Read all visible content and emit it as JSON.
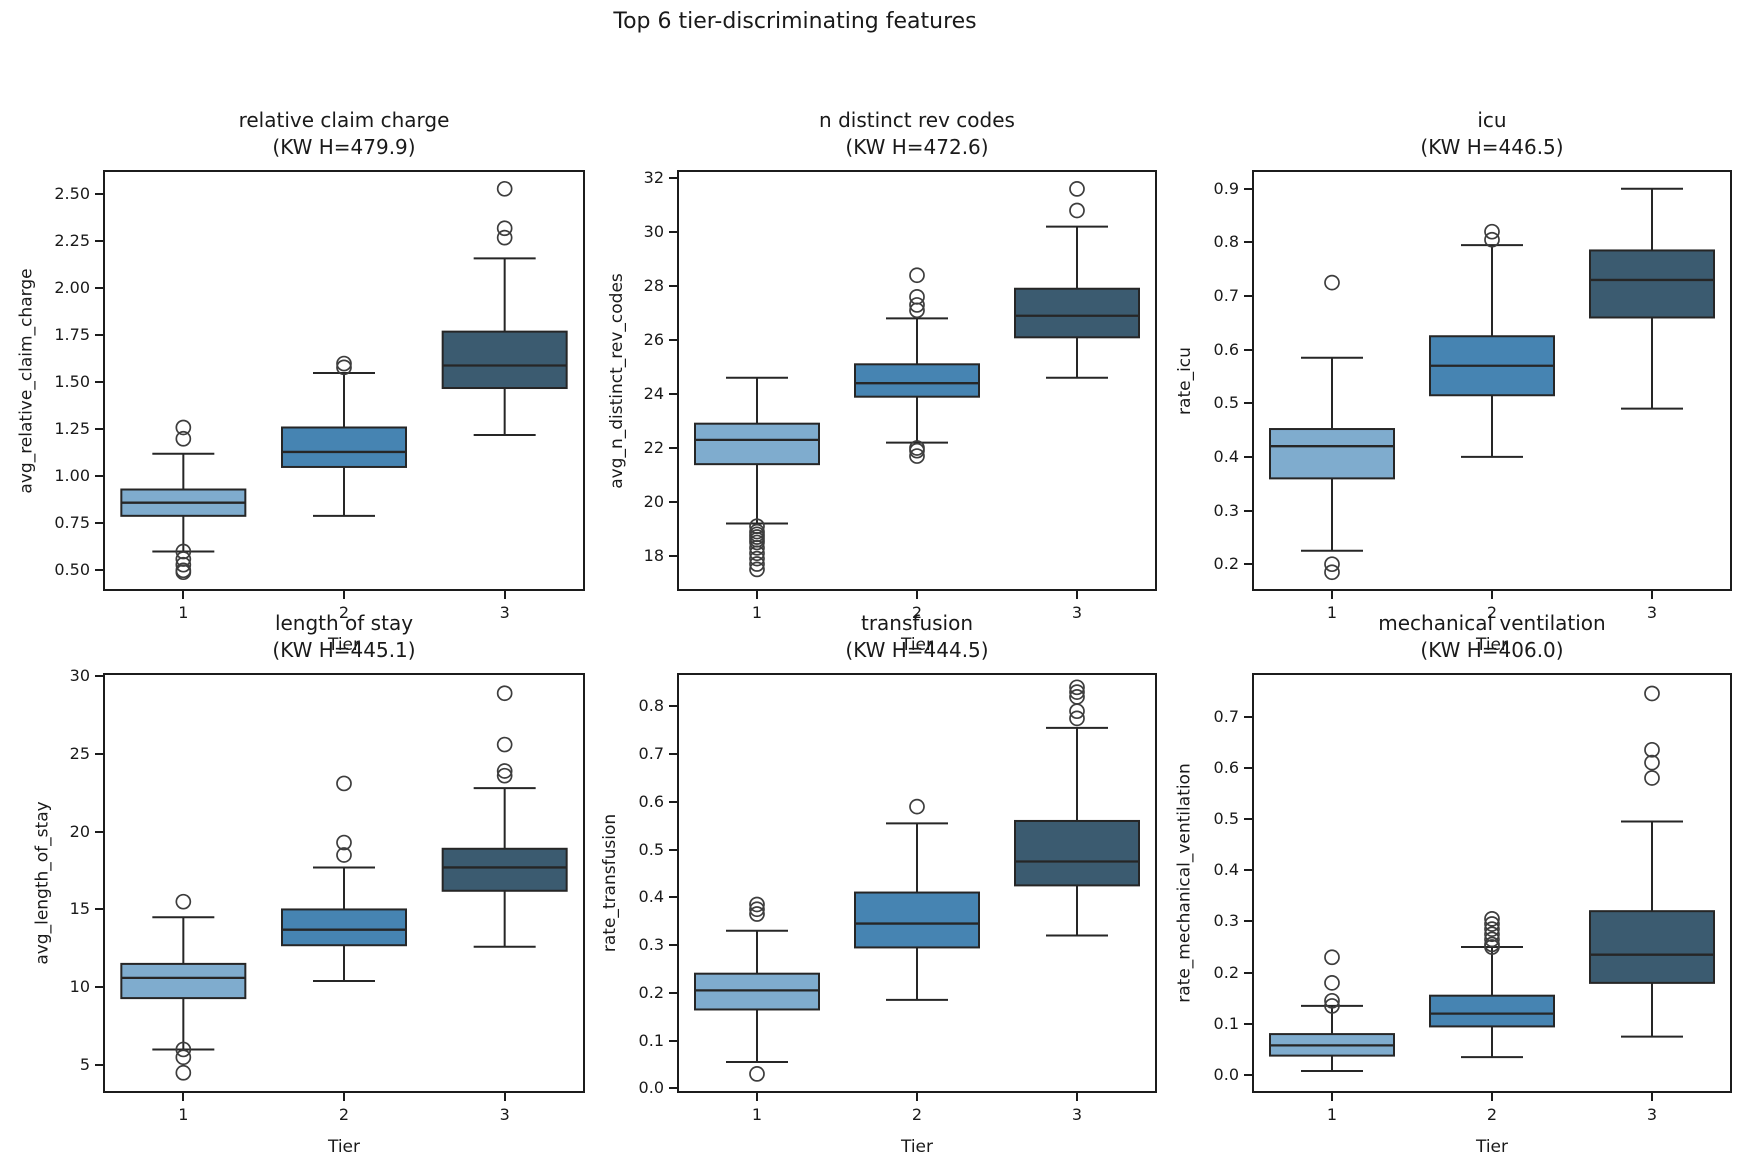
{
  "figure": {
    "suptitle": "Top 6 tier-discriminating features",
    "x_axis_label": "Tier",
    "categories": [
      "1",
      "2",
      "3"
    ]
  },
  "colors": {
    "tier_fills": [
      "#7FACCE",
      "#4684B2",
      "#3B5B70"
    ],
    "box_edge": "#262626",
    "axes_edge": "#1c1c1c",
    "flier_edge": "#3d3d3d",
    "text": "#1a1a1a"
  },
  "chart_data": [
    {
      "type": "box",
      "title": "relative claim charge",
      "subtitle": "(KW H=479.9)",
      "kw_h": 479.9,
      "xlabel": "Tier",
      "ylabel": "avg_relative_claim_charge",
      "categories": [
        "1",
        "2",
        "3"
      ],
      "ylim": [
        0.39,
        2.63
      ],
      "yticks": [
        0.5,
        0.75,
        1.0,
        1.25,
        1.5,
        1.75,
        2.0,
        2.25,
        2.5
      ],
      "ytick_labels": [
        "0.50",
        "0.75",
        "1.00",
        "1.25",
        "1.50",
        "1.75",
        "2.00",
        "2.25",
        "2.50"
      ],
      "boxes": [
        {
          "tier": "1",
          "whislo": 0.6,
          "q1": 0.79,
          "med": 0.86,
          "q3": 0.93,
          "whishi": 1.12,
          "fliers": [
            1.26,
            1.2,
            0.6,
            0.56,
            0.53,
            0.5,
            0.49
          ]
        },
        {
          "tier": "2",
          "whislo": 0.79,
          "q1": 1.05,
          "med": 1.13,
          "q3": 1.26,
          "whishi": 1.55,
          "fliers": [
            1.6,
            1.58
          ]
        },
        {
          "tier": "3",
          "whislo": 1.22,
          "q1": 1.47,
          "med": 1.59,
          "q3": 1.77,
          "whishi": 2.16,
          "fliers": [
            2.53,
            2.32,
            2.27
          ]
        }
      ]
    },
    {
      "type": "box",
      "title": "n distinct rev codes",
      "subtitle": "(KW H=472.6)",
      "kw_h": 472.6,
      "xlabel": "Tier",
      "ylabel": "avg_n_distinct_rev_codes",
      "categories": [
        "1",
        "2",
        "3"
      ],
      "ylim": [
        16.7,
        32.3
      ],
      "yticks": [
        18,
        20,
        22,
        24,
        26,
        28,
        30,
        32
      ],
      "ytick_labels": [
        "18",
        "20",
        "22",
        "24",
        "26",
        "28",
        "30",
        "32"
      ],
      "boxes": [
        {
          "tier": "1",
          "whislo": 19.2,
          "q1": 21.4,
          "med": 22.3,
          "q3": 22.9,
          "whishi": 24.6,
          "fliers": [
            19.1,
            18.9,
            18.8,
            18.7,
            18.6,
            18.5,
            18.3,
            18.1,
            17.9,
            17.7,
            17.5
          ]
        },
        {
          "tier": "2",
          "whislo": 22.2,
          "q1": 23.9,
          "med": 24.4,
          "q3": 25.1,
          "whishi": 26.8,
          "fliers": [
            28.4,
            27.6,
            27.3,
            27.1,
            22.0,
            21.9,
            21.7
          ]
        },
        {
          "tier": "3",
          "whislo": 24.6,
          "q1": 26.1,
          "med": 26.9,
          "q3": 27.9,
          "whishi": 30.2,
          "fliers": [
            31.6,
            30.8
          ]
        }
      ]
    },
    {
      "type": "box",
      "title": "icu",
      "subtitle": "(KW H=446.5)",
      "kw_h": 446.5,
      "xlabel": "Tier",
      "ylabel": "rate_icu",
      "categories": [
        "1",
        "2",
        "3"
      ],
      "ylim": [
        0.15,
        0.935
      ],
      "yticks": [
        0.2,
        0.3,
        0.4,
        0.5,
        0.6,
        0.7,
        0.8,
        0.9
      ],
      "ytick_labels": [
        "0.2",
        "0.3",
        "0.4",
        "0.5",
        "0.6",
        "0.7",
        "0.8",
        "0.9"
      ],
      "boxes": [
        {
          "tier": "1",
          "whislo": 0.225,
          "q1": 0.36,
          "med": 0.42,
          "q3": 0.452,
          "whishi": 0.585,
          "fliers": [
            0.725,
            0.2,
            0.185
          ]
        },
        {
          "tier": "2",
          "whislo": 0.4,
          "q1": 0.515,
          "med": 0.57,
          "q3": 0.625,
          "whishi": 0.795,
          "fliers": [
            0.82,
            0.805
          ]
        },
        {
          "tier": "3",
          "whislo": 0.49,
          "q1": 0.66,
          "med": 0.73,
          "q3": 0.785,
          "whishi": 0.9,
          "fliers": []
        }
      ]
    },
    {
      "type": "box",
      "title": "length of stay",
      "subtitle": "(KW H=445.1)",
      "kw_h": 445.1,
      "xlabel": "Tier",
      "ylabel": "avg_length_of_stay",
      "categories": [
        "1",
        "2",
        "3"
      ],
      "ylim": [
        3.2,
        30.2
      ],
      "yticks": [
        5,
        10,
        15,
        20,
        25,
        30
      ],
      "ytick_labels": [
        "5",
        "10",
        "15",
        "20",
        "25",
        "30"
      ],
      "boxes": [
        {
          "tier": "1",
          "whislo": 6.0,
          "q1": 9.3,
          "med": 10.6,
          "q3": 11.5,
          "whishi": 14.5,
          "fliers": [
            15.5,
            6.0,
            5.5,
            4.5
          ]
        },
        {
          "tier": "2",
          "whislo": 10.4,
          "q1": 12.7,
          "med": 13.7,
          "q3": 15.0,
          "whishi": 17.7,
          "fliers": [
            23.1,
            19.3,
            18.5
          ]
        },
        {
          "tier": "3",
          "whislo": 12.6,
          "q1": 16.2,
          "med": 17.7,
          "q3": 18.9,
          "whishi": 22.8,
          "fliers": [
            28.9,
            25.6,
            23.9,
            23.6
          ]
        }
      ]
    },
    {
      "type": "box",
      "title": "transfusion",
      "subtitle": "(KW H=444.5)",
      "kw_h": 444.5,
      "xlabel": "Tier",
      "ylabel": "rate_transfusion",
      "categories": [
        "1",
        "2",
        "3"
      ],
      "ylim": [
        -0.01,
        0.87
      ],
      "yticks": [
        0.0,
        0.1,
        0.2,
        0.3,
        0.4,
        0.5,
        0.6,
        0.7,
        0.8
      ],
      "ytick_labels": [
        "0.0",
        "0.1",
        "0.2",
        "0.3",
        "0.4",
        "0.5",
        "0.6",
        "0.7",
        "0.8"
      ],
      "boxes": [
        {
          "tier": "1",
          "whislo": 0.055,
          "q1": 0.165,
          "med": 0.205,
          "q3": 0.24,
          "whishi": 0.33,
          "fliers": [
            0.385,
            0.375,
            0.365,
            0.03
          ]
        },
        {
          "tier": "2",
          "whislo": 0.185,
          "q1": 0.295,
          "med": 0.345,
          "q3": 0.41,
          "whishi": 0.555,
          "fliers": [
            0.59
          ]
        },
        {
          "tier": "3",
          "whislo": 0.32,
          "q1": 0.425,
          "med": 0.475,
          "q3": 0.56,
          "whishi": 0.755,
          "fliers": [
            0.84,
            0.83,
            0.82,
            0.79,
            0.775
          ]
        }
      ]
    },
    {
      "type": "box",
      "title": "mechanical ventilation",
      "subtitle": "(KW H=406.0)",
      "kw_h": 406.0,
      "xlabel": "Tier",
      "ylabel": "rate_mechanical_ventilation",
      "categories": [
        "1",
        "2",
        "3"
      ],
      "ylim": [
        -0.035,
        0.785
      ],
      "yticks": [
        0.0,
        0.1,
        0.2,
        0.3,
        0.4,
        0.5,
        0.6,
        0.7
      ],
      "ytick_labels": [
        "0.0",
        "0.1",
        "0.2",
        "0.3",
        "0.4",
        "0.5",
        "0.6",
        "0.7"
      ],
      "boxes": [
        {
          "tier": "1",
          "whislo": 0.008,
          "q1": 0.038,
          "med": 0.058,
          "q3": 0.08,
          "whishi": 0.135,
          "fliers": [
            0.23,
            0.18,
            0.145,
            0.135
          ]
        },
        {
          "tier": "2",
          "whislo": 0.035,
          "q1": 0.095,
          "med": 0.12,
          "q3": 0.155,
          "whishi": 0.25,
          "fliers": [
            0.305,
            0.295,
            0.285,
            0.275,
            0.265,
            0.255,
            0.25
          ]
        },
        {
          "tier": "3",
          "whislo": 0.075,
          "q1": 0.18,
          "med": 0.235,
          "q3": 0.32,
          "whishi": 0.495,
          "fliers": [
            0.745,
            0.635,
            0.61,
            0.58
          ]
        }
      ]
    }
  ]
}
